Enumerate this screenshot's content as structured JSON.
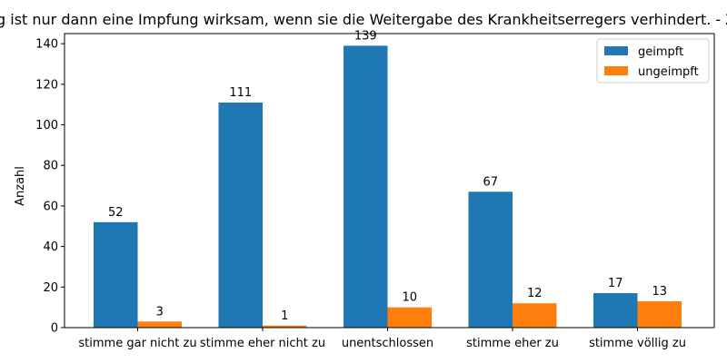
{
  "chart_data": {
    "type": "bar",
    "title": "Eine Impfung ist nur dann eine Impfung wirksam, wenn sie die Weitergabe des Krankheitserregers verhindert. - Zustimmung",
    "xlabel": "",
    "ylabel": "Anzahl",
    "ylim": [
      0,
      145
    ],
    "yticks": [
      0,
      20,
      40,
      60,
      80,
      100,
      120,
      140
    ],
    "categories": [
      "stimme gar nicht zu",
      "stimme eher nicht zu",
      "unentschlossen",
      "stimme eher zu",
      "stimme völlig zu"
    ],
    "series": [
      {
        "name": "geimpft",
        "values": [
          52,
          111,
          139,
          67,
          17
        ],
        "color": "#1f77b4"
      },
      {
        "name": "ungeimpft",
        "values": [
          3,
          1,
          10,
          12,
          13
        ],
        "color": "#ff7f0e"
      }
    ],
    "legend_position": "top-right",
    "grid": false
  }
}
